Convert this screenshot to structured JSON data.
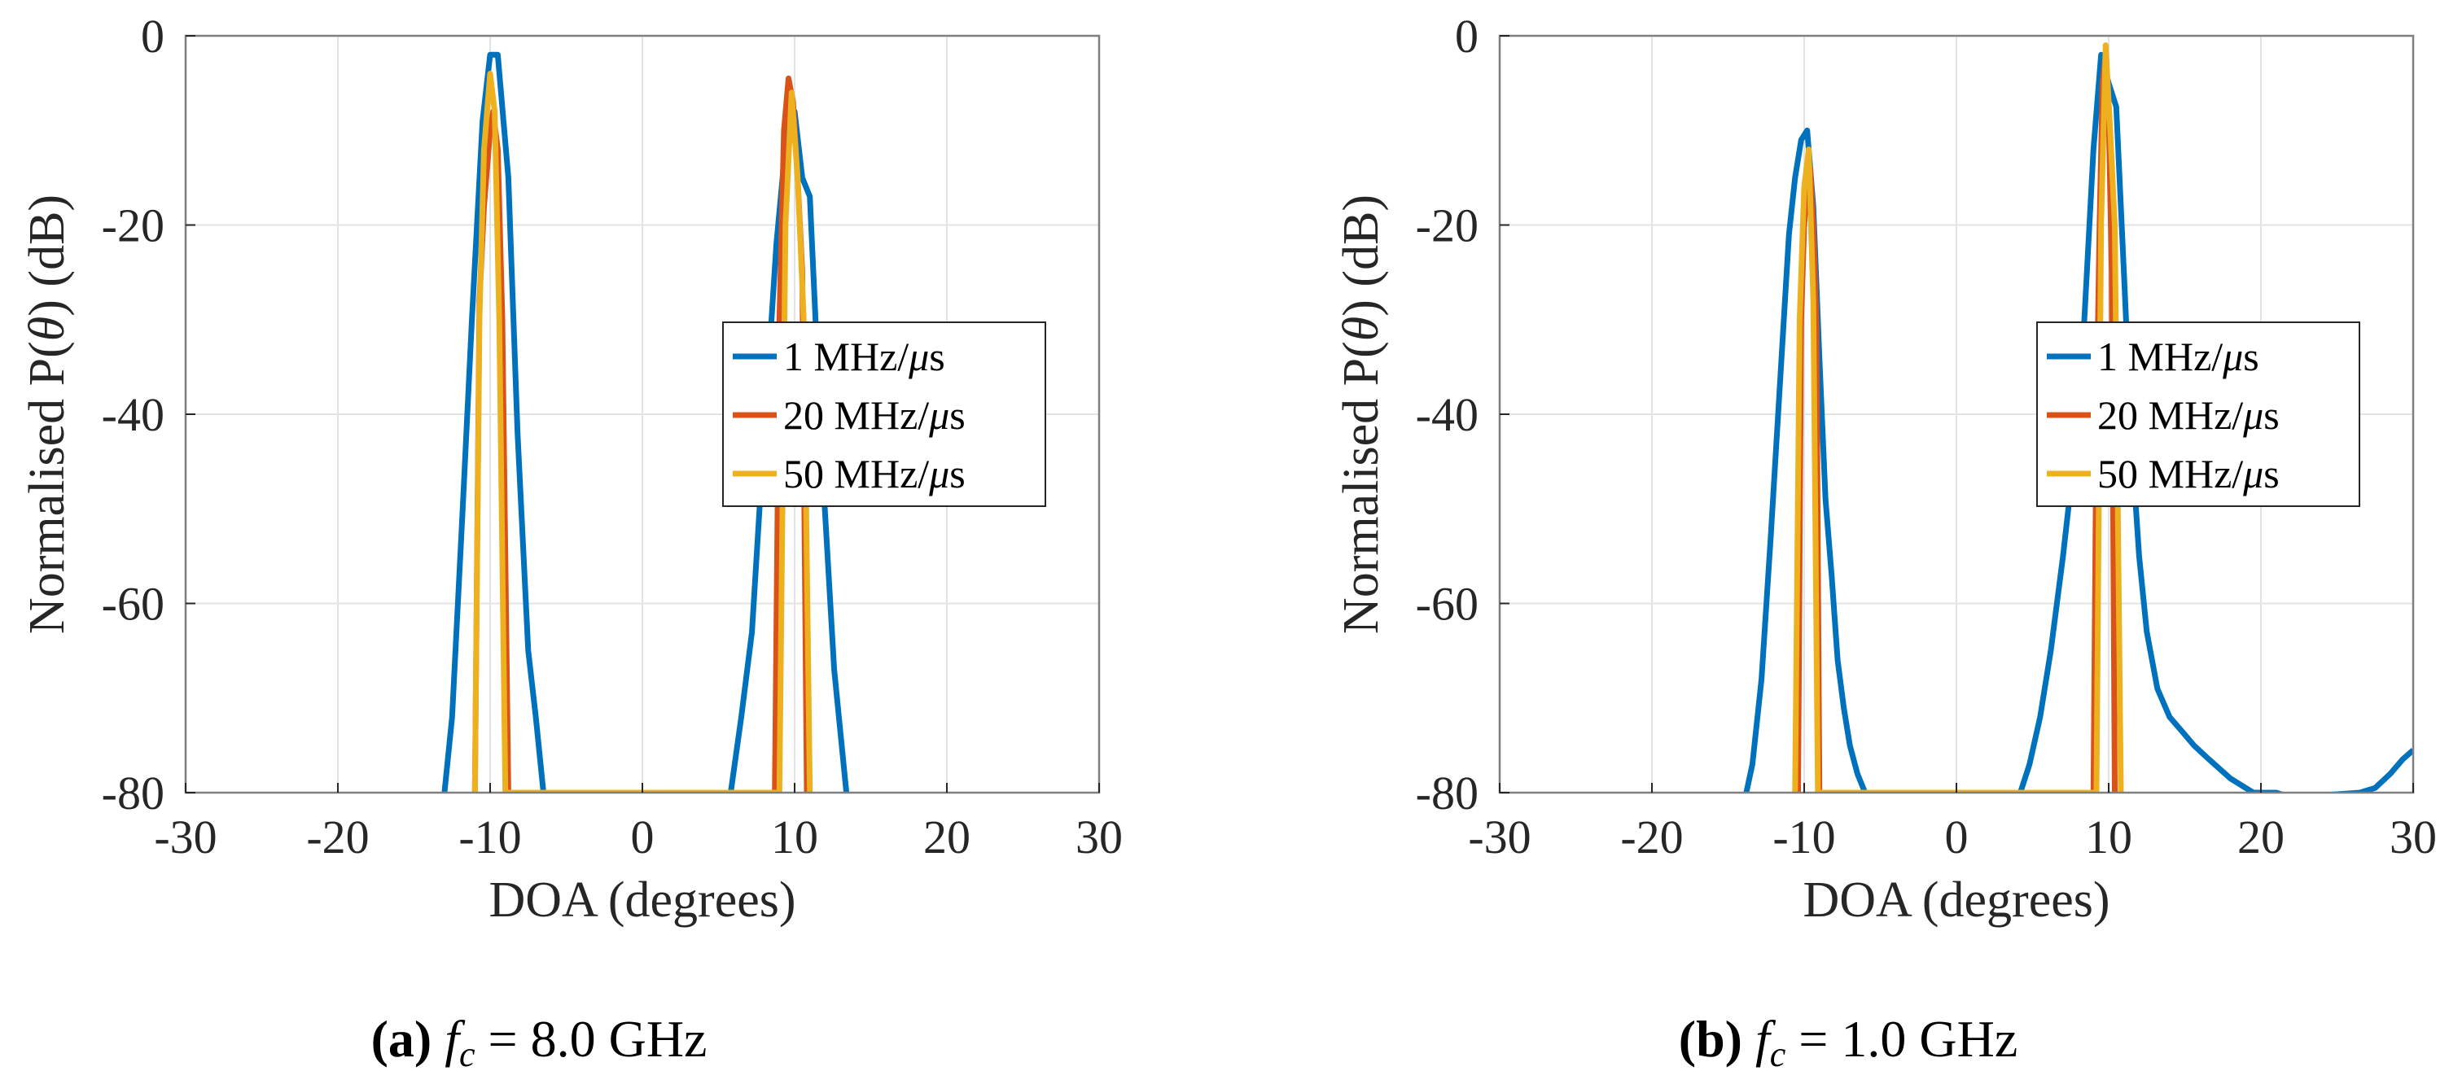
{
  "chart_data": [
    {
      "type": "line",
      "panel_label": "(a)",
      "caption_var": "f",
      "caption_sub": "c",
      "caption_rest": " = 8.0 GHz",
      "xlabel": "DOA (degrees)",
      "ylabel_prefix": "Normalised P(",
      "ylabel_symbol": "θ",
      "ylabel_suffix": ") (dB)",
      "xlim": [
        -30,
        30
      ],
      "ylim": [
        -80,
        0
      ],
      "xticks": [
        -30,
        -20,
        -10,
        0,
        10,
        20,
        30
      ],
      "yticks": [
        0,
        -20,
        -40,
        -60,
        -80
      ],
      "grid": true,
      "legend_position": "center-right",
      "series": [
        {
          "name_prefix": "1 MHz/",
          "name_symbol": "μ",
          "name_suffix": "s",
          "color": "#0072BD",
          "x": [
            -13.0,
            -12.5,
            -11.8,
            -11.2,
            -10.5,
            -10.0,
            -9.5,
            -8.8,
            -8.2,
            -7.5,
            -7.0,
            -6.5,
            5.8,
            6.5,
            7.2,
            8.0,
            8.8,
            9.5,
            10.0,
            10.5,
            11.0,
            11.8,
            12.6,
            13.4
          ],
          "y": [
            -80,
            -72,
            -50,
            -30,
            -9,
            -2,
            -2,
            -15,
            -42,
            -65,
            -72,
            -80,
            -80,
            -72,
            -63,
            -42,
            -22,
            -10,
            -8,
            -15,
            -17,
            -45,
            -67,
            -80
          ]
        },
        {
          "name_prefix": "20 MHz/",
          "name_symbol": "μ",
          "name_suffix": "s",
          "color": "#D95319",
          "x": [
            -11.0,
            -10.7,
            -10.4,
            -10.0,
            -9.8,
            -9.5,
            -9.2,
            -8.8,
            8.7,
            9.0,
            9.3,
            9.6,
            9.9,
            10.2,
            10.5,
            10.8
          ],
          "y": [
            -80,
            -28,
            -18,
            -10,
            -8,
            -12,
            -30,
            -80,
            -80,
            -30,
            -10,
            -4.5,
            -7,
            -15,
            -25,
            -80
          ]
        },
        {
          "name_prefix": "50 MHz/",
          "name_symbol": "μ",
          "name_suffix": "s",
          "color": "#EDB120",
          "x": [
            -11.0,
            -10.7,
            -10.4,
            -10.0,
            -9.7,
            -9.4,
            -9.0,
            9.0,
            9.4,
            9.8,
            10.2,
            10.6,
            11.0
          ],
          "y": [
            -80,
            -30,
            -12,
            -4,
            -8,
            -30,
            -80,
            -80,
            -20,
            -6,
            -15,
            -30,
            -80
          ]
        }
      ]
    },
    {
      "type": "line",
      "panel_label": "(b)",
      "caption_var": "f",
      "caption_sub": "c",
      "caption_rest": " = 1.0 GHz",
      "xlabel": "DOA (degrees)",
      "ylabel_prefix": "Normalised P(",
      "ylabel_symbol": "θ",
      "ylabel_suffix": ") (dB)",
      "xlim": [
        -30,
        30
      ],
      "ylim": [
        -80,
        0
      ],
      "xticks": [
        -30,
        -20,
        -10,
        0,
        10,
        20,
        30
      ],
      "yticks": [
        0,
        -20,
        -40,
        -60,
        -80
      ],
      "grid": true,
      "legend_position": "center-right",
      "series": [
        {
          "name_prefix": "1 MHz/",
          "name_symbol": "μ",
          "name_suffix": "s",
          "color": "#0072BD",
          "x": [
            -13.8,
            -13.4,
            -12.8,
            -12.2,
            -11.6,
            -11.0,
            -10.6,
            -10.2,
            -9.8,
            -9.4,
            -9.0,
            -8.6,
            -8.2,
            -7.8,
            -7.4,
            -7.0,
            -6.5,
            -6.0,
            -5.6,
            4.2,
            4.8,
            5.5,
            6.2,
            7.0,
            7.7,
            8.4,
            9.0,
            9.5,
            10.0,
            10.5,
            11.0,
            11.5,
            12.0,
            12.5,
            13.2,
            14.0,
            14.8,
            15.6,
            16.6,
            18.0,
            19.5,
            21.0,
            22.0,
            26.5,
            27.5,
            28.5,
            29.3,
            30.0
          ],
          "y": [
            -80,
            -77,
            -68,
            -53,
            -37,
            -21,
            -15,
            -11,
            -10,
            -18,
            -34,
            -49,
            -57,
            -66,
            -71,
            -75,
            -78,
            -80,
            -82,
            -80,
            -77,
            -72,
            -65,
            -55,
            -45,
            -30,
            -12,
            -2,
            -5,
            -7.5,
            -25,
            -43,
            -55,
            -63,
            -69,
            -72,
            -73.5,
            -75,
            -76.5,
            -78.5,
            -80,
            -80,
            -80.5,
            -80,
            -79.5,
            -78,
            -76.5,
            -75.5
          ]
        },
        {
          "name_prefix": "20 MHz/",
          "name_symbol": "μ",
          "name_suffix": "s",
          "color": "#D95319",
          "x": [
            -10.4,
            -10.2,
            -10.0,
            -9.8,
            -9.6,
            -9.4,
            -9.2,
            -9.0,
            9.0,
            9.2,
            9.4,
            9.6,
            9.8,
            10.0,
            10.2,
            10.4
          ],
          "y": [
            -80,
            -30,
            -20,
            -16,
            -14,
            -20,
            -30,
            -80,
            -80,
            -40,
            -20,
            -5,
            -2,
            -8,
            -25,
            -80
          ]
        },
        {
          "name_prefix": "50 MHz/",
          "name_symbol": "μ",
          "name_suffix": "s",
          "color": "#EDB120",
          "x": [
            -10.6,
            -10.3,
            -10.0,
            -9.7,
            -9.4,
            -9.1,
            9.2,
            9.5,
            9.8,
            10.1,
            10.4,
            10.8
          ],
          "y": [
            -80,
            -30,
            -16,
            -12,
            -28,
            -80,
            -80,
            -20,
            -1,
            -10,
            -20,
            -80
          ]
        }
      ]
    }
  ]
}
